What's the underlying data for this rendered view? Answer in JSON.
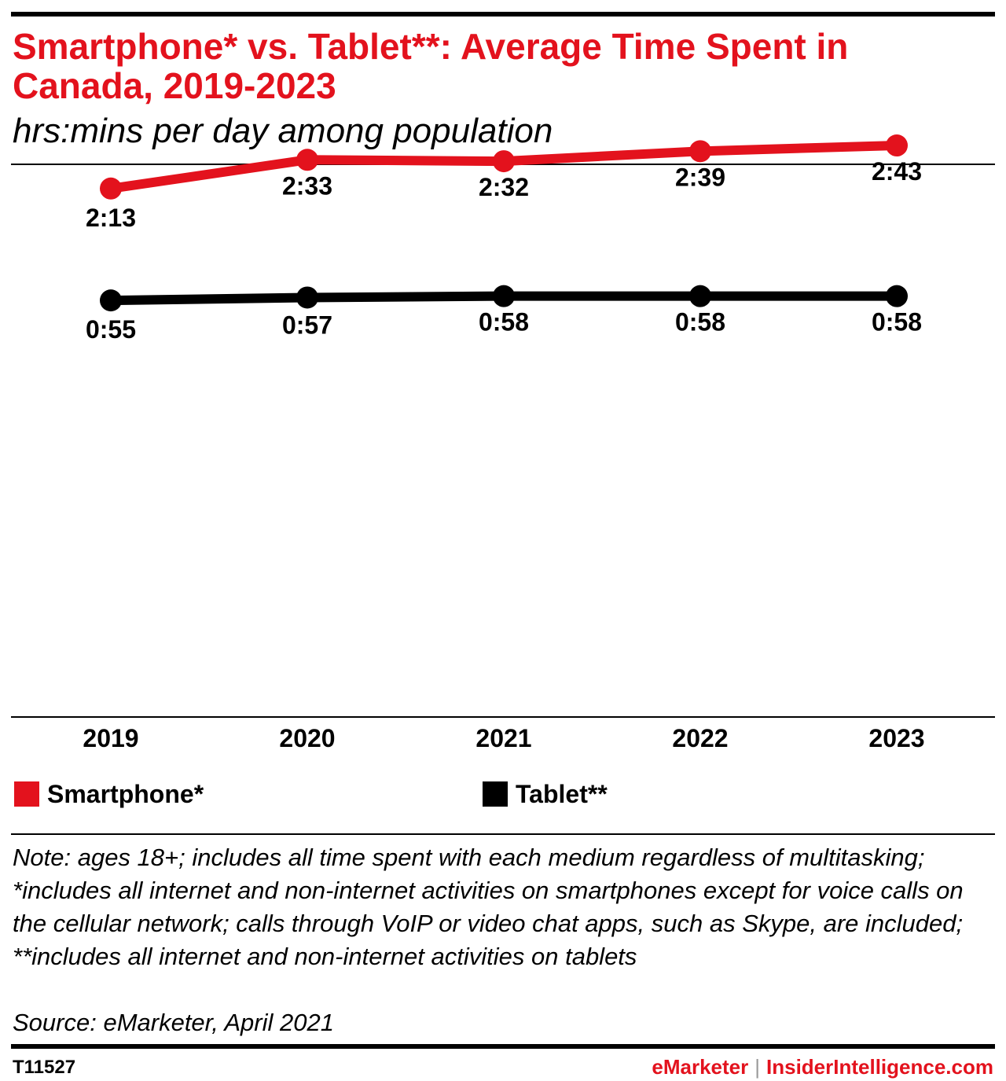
{
  "header": {
    "title": "Smartphone* vs. Tablet**: Average Time Spent in Canada, 2019-2023",
    "subtitle": "hrs:mins per day among population"
  },
  "chart_data": {
    "type": "line",
    "title": "Smartphone* vs. Tablet**: Average Time Spent in Canada, 2019-2023",
    "subtitle": "hrs:mins per day among population",
    "categories": [
      "2019",
      "2020",
      "2021",
      "2022",
      "2023"
    ],
    "series": [
      {
        "name": "Smartphone*",
        "color": "#e3121d",
        "values": [
          133,
          153,
          152,
          159,
          163
        ],
        "labels": [
          "2:13",
          "2:33",
          "2:32",
          "2:39",
          "2:43"
        ]
      },
      {
        "name": "Tablet**",
        "color": "#000000",
        "values": [
          55,
          57,
          58,
          58,
          58
        ],
        "labels": [
          "0:55",
          "0:57",
          "0:58",
          "0:58",
          "0:58"
        ]
      }
    ],
    "ylim": [
      0,
      200
    ],
    "grid": false,
    "legend_position": "bottom-left"
  },
  "legend": {
    "items": [
      {
        "label": "Smartphone*",
        "color": "#e3121d"
      },
      {
        "label": "Tablet**",
        "color": "#000000"
      }
    ]
  },
  "notes": {
    "note": "Note: ages 18+; includes all time spent with each medium regardless of multitasking; *includes all internet and non-internet activities on smartphones except for voice calls on the cellular network; calls through VoIP or video chat apps, such as Skype, are included; **includes all internet and non-internet activities on tablets",
    "source": "Source: eMarketer, April 2021"
  },
  "footer": {
    "chart_id": "T11527",
    "brand_primary": "eMarketer",
    "separator": "|",
    "brand_secondary": "InsiderIntelligence.com"
  }
}
